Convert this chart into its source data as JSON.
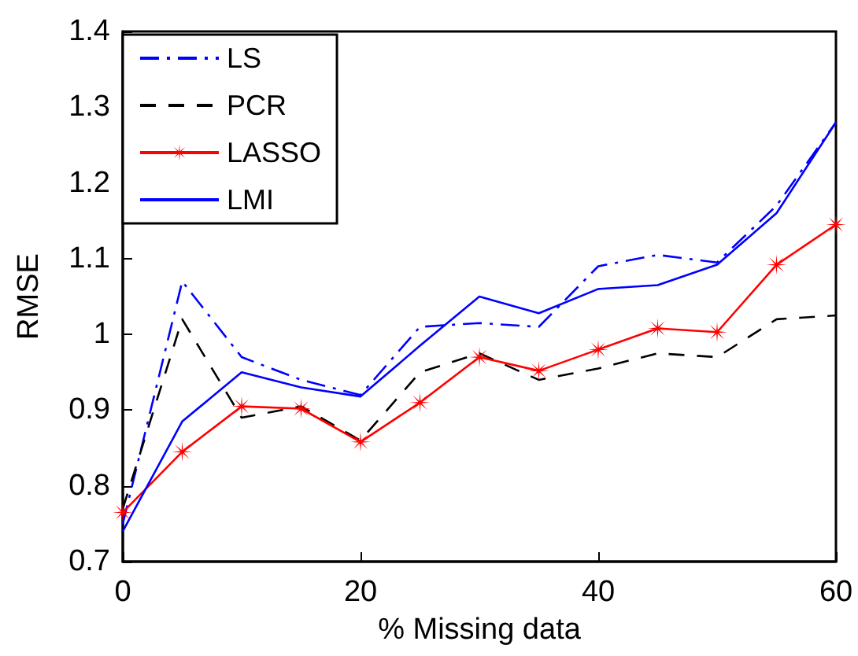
{
  "chart_data": {
    "type": "line",
    "xlabel": "% Missing data",
    "ylabel": "RMSE",
    "x": [
      0,
      5,
      10,
      15,
      20,
      25,
      30,
      35,
      40,
      45,
      50,
      55,
      60
    ],
    "series": [
      {
        "name": "LS",
        "color": "#0000ff",
        "line_style": "dashdot",
        "marker": "none",
        "values": [
          0.75,
          1.07,
          0.97,
          0.94,
          0.92,
          1.01,
          1.015,
          1.01,
          1.09,
          1.105,
          1.095,
          1.17,
          1.28
        ]
      },
      {
        "name": "PCR",
        "color": "#000000",
        "line_style": "dashed",
        "marker": "none",
        "values": [
          0.77,
          1.02,
          0.89,
          0.905,
          0.86,
          0.95,
          0.975,
          0.94,
          0.955,
          0.975,
          0.97,
          1.02,
          1.025
        ]
      },
      {
        "name": "LASSO",
        "color": "#ff0000",
        "line_style": "solid",
        "marker": "star",
        "values": [
          0.765,
          0.845,
          0.905,
          0.902,
          0.858,
          0.91,
          0.97,
          0.952,
          0.98,
          1.008,
          1.003,
          1.092,
          1.145
        ]
      },
      {
        "name": "LMI",
        "color": "#0000ff",
        "line_style": "solid",
        "marker": "none",
        "values": [
          0.74,
          0.885,
          0.95,
          0.93,
          0.918,
          0.985,
          1.05,
          1.028,
          1.06,
          1.065,
          1.092,
          1.16,
          1.28
        ]
      }
    ],
    "xlim": [
      0,
      60
    ],
    "xticks": [
      0,
      20,
      40,
      60
    ],
    "ylim": [
      0.7,
      1.4
    ],
    "yticks": [
      0.7,
      0.8,
      0.9,
      1,
      1.1,
      1.2,
      1.3,
      1.4
    ],
    "grid": false,
    "legend": "top left"
  }
}
